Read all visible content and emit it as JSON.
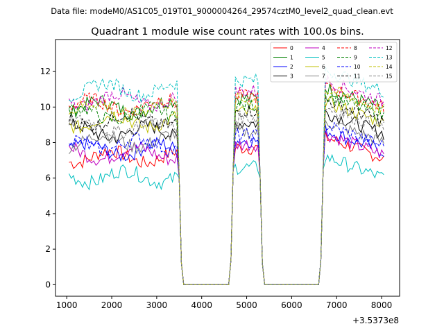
{
  "chart_data": {
    "type": "line",
    "suptitle": "Data file: modeM0/AS1C05_019T01_9000004264_29574cztM0_level2_quad_clean.evt",
    "title": "Quadrant 1 module wise count rates with 100.0s bins.",
    "xlabel": "",
    "ylabel": "",
    "x_offset_label": "+3.5373e8",
    "xlim": [
      750,
      8400
    ],
    "ylim": [
      -0.65,
      13.8
    ],
    "xticks": [
      1000,
      2000,
      3000,
      4000,
      5000,
      6000,
      7000,
      8000
    ],
    "xtick_labels": [
      "1000",
      "2000",
      "3000",
      "4000",
      "5000",
      "6000",
      "7000",
      "8000"
    ],
    "yticks": [
      0,
      2,
      4,
      6,
      8,
      10,
      12
    ],
    "ytick_labels": [
      "0",
      "2",
      "4",
      "6",
      "8",
      "10",
      "12"
    ],
    "legend_position": "top-right",
    "segments": [
      {
        "start": 1050,
        "end": 3450
      },
      {
        "start": 4750,
        "end": 5250
      },
      {
        "start": 6750,
        "end": 8050
      }
    ],
    "series": [
      {
        "name": "0",
        "color": "#ff0000",
        "dash": false,
        "level": 7.2
      },
      {
        "name": "1",
        "color": "#008000",
        "dash": false,
        "level": 10.0
      },
      {
        "name": "2",
        "color": "#0000ff",
        "dash": false,
        "level": 7.6
      },
      {
        "name": "3",
        "color": "#000000",
        "dash": false,
        "level": 8.6
      },
      {
        "name": "4",
        "color": "#bf00bf",
        "dash": false,
        "level": 7.4
      },
      {
        "name": "5",
        "color": "#00bfbf",
        "dash": false,
        "level": 6.1
      },
      {
        "name": "6",
        "color": "#bfbf00",
        "dash": false,
        "level": 9.2
      },
      {
        "name": "7",
        "color": "#808080",
        "dash": false,
        "level": 8.1
      },
      {
        "name": "8",
        "color": "#ff0000",
        "dash": true,
        "level": 10.1
      },
      {
        "name": "9",
        "color": "#008000",
        "dash": true,
        "level": 9.6
      },
      {
        "name": "10",
        "color": "#0000ff",
        "dash": true,
        "level": 7.9
      },
      {
        "name": "11",
        "color": "#000000",
        "dash": true,
        "level": 9.3
      },
      {
        "name": "12",
        "color": "#bf00bf",
        "dash": true,
        "level": 10.4
      },
      {
        "name": "13",
        "color": "#00bfbf",
        "dash": true,
        "level": 11.0
      },
      {
        "name": "14",
        "color": "#bfbf00",
        "dash": true,
        "level": 9.9
      },
      {
        "name": "15",
        "color": "#808080",
        "dash": true,
        "level": 8.9
      }
    ]
  }
}
